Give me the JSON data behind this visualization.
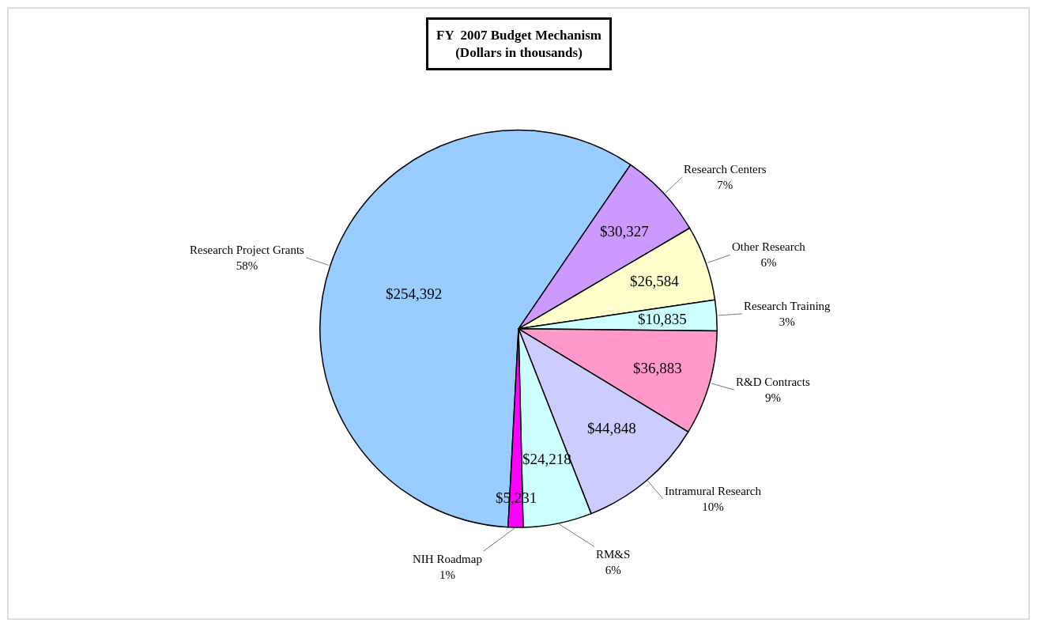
{
  "chart_data": {
    "type": "pie",
    "title": "FY  2007 Budget Mechanism",
    "subtitle": "(Dollars in thousands)",
    "categories": [
      "Research Project Grants",
      "Research Centers",
      "Other Research",
      "Research Training",
      "R&D Contracts",
      "Intramural Research",
      "RM&S",
      "NIH Roadmap"
    ],
    "values": [
      254392,
      30327,
      26584,
      10835,
      36883,
      44848,
      24218,
      5231
    ],
    "colors": [
      "#99ccff",
      "#cc99ff",
      "#ffffcc",
      "#ccffff",
      "#ff99cc",
      "#ccccff",
      "#ccffff",
      "#ff00ff"
    ],
    "value_labels": [
      "$254,392",
      "$30,327",
      "$26,584",
      "$10,835",
      "$36,883",
      "$44,848",
      "$24,218",
      "$5,231"
    ],
    "annotations": [
      "58%",
      "7%",
      "6%",
      "3%",
      "9%",
      "10%",
      "6%",
      "1%"
    ],
    "legend": false
  }
}
